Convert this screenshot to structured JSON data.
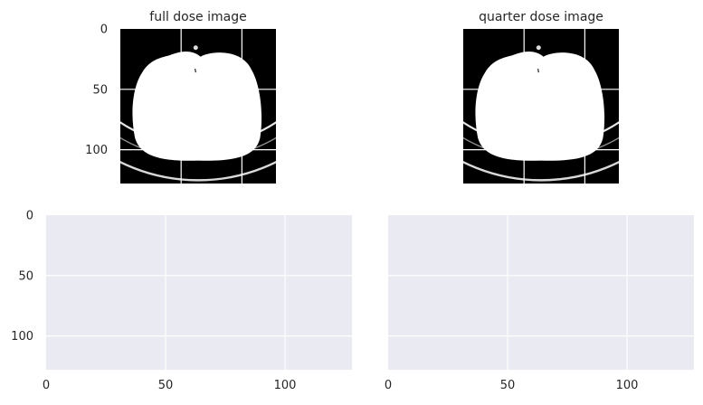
{
  "chart_data": [
    {
      "type": "heatmap",
      "title": "full dose image",
      "xlim": [
        0,
        128
      ],
      "ylim": [
        128,
        0
      ],
      "yticks": [
        0,
        50,
        100
      ],
      "xticks": [],
      "grid": true,
      "content": "ct-slice"
    },
    {
      "type": "heatmap",
      "title": "quarter dose image",
      "xlim": [
        0,
        128
      ],
      "ylim": [
        128,
        0
      ],
      "yticks": [],
      "xticks": [],
      "grid": true,
      "content": "ct-slice"
    },
    {
      "type": "heatmap",
      "title": "",
      "xlim": [
        0,
        128
      ],
      "ylim": [
        128,
        0
      ],
      "yticks": [
        0,
        50,
        100
      ],
      "xticks": [
        0,
        50,
        100
      ],
      "grid": true,
      "content": "empty"
    },
    {
      "type": "heatmap",
      "title": "",
      "xlim": [
        0,
        128
      ],
      "ylim": [
        128,
        0
      ],
      "yticks": [],
      "xticks": [
        0,
        50,
        100
      ],
      "grid": true,
      "content": "empty"
    }
  ],
  "style": {
    "axes_bg": "#eaeaf2",
    "grid_color": "#ffffff",
    "image_bg": "#000000",
    "tissue_color": "#ffffff"
  }
}
